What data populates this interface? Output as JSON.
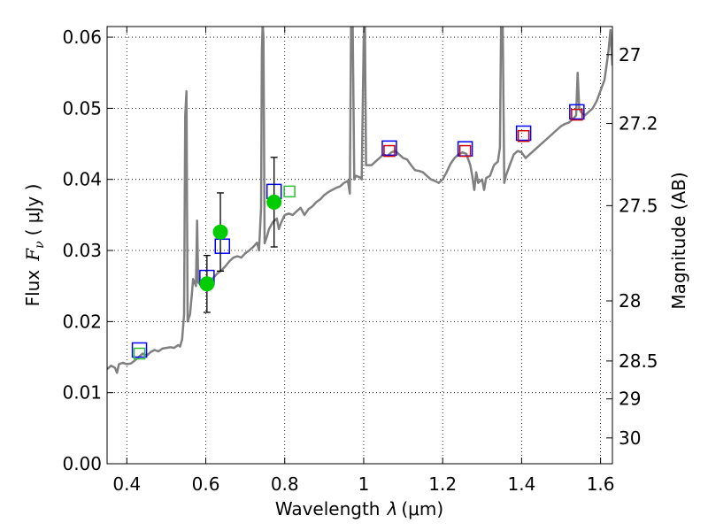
{
  "chart_data": {
    "type": "line",
    "x_axis": {
      "label_prefix": "Wavelength",
      "label_symbol": "λ",
      "label_unit": "(μm)",
      "range": [
        0.35,
        1.63
      ],
      "ticks": [
        0.4,
        0.6,
        0.8,
        1.0,
        1.2,
        1.4,
        1.6
      ],
      "tick_labels": [
        "0.4",
        "0.6",
        "0.8",
        "1",
        "1.2",
        "1.4",
        "1.6"
      ]
    },
    "y_axis": {
      "label_prefix": "Flux",
      "label_symbol": "F",
      "label_subscript": "ν",
      "label_unit": "( μJy )",
      "range": [
        0.0,
        0.0615
      ],
      "ticks": [
        0.0,
        0.01,
        0.02,
        0.03,
        0.04,
        0.05,
        0.06
      ],
      "tick_labels": [
        "0.00",
        "0.01",
        "0.02",
        "0.03",
        "0.04",
        "0.05",
        "0.06"
      ]
    },
    "y2_axis": {
      "label": "Magnitude (AB)",
      "ticks": [
        27,
        27.2,
        27.5,
        28,
        28.5,
        29,
        30
      ],
      "tick_labels": [
        "27",
        "27.2",
        "27.5",
        "28",
        "28.5",
        "29",
        "30"
      ]
    },
    "grid": true,
    "series": [
      {
        "kind": "line",
        "color": "#808080",
        "points": [
          [
            0.35,
            0.0133
          ],
          [
            0.36,
            0.0138
          ],
          [
            0.37,
            0.0135
          ],
          [
            0.375,
            0.0128
          ],
          [
            0.38,
            0.014
          ],
          [
            0.39,
            0.0142
          ],
          [
            0.4,
            0.014
          ],
          [
            0.41,
            0.0141
          ],
          [
            0.42,
            0.0145
          ],
          [
            0.43,
            0.015
          ],
          [
            0.44,
            0.0155
          ],
          [
            0.45,
            0.0152
          ],
          [
            0.46,
            0.0157
          ],
          [
            0.47,
            0.016
          ],
          [
            0.48,
            0.0158
          ],
          [
            0.49,
            0.0162
          ],
          [
            0.5,
            0.0163
          ],
          [
            0.51,
            0.0164
          ],
          [
            0.52,
            0.0163
          ],
          [
            0.53,
            0.0167
          ],
          [
            0.535,
            0.0165
          ],
          [
            0.54,
            0.0175
          ],
          [
            0.545,
            0.021
          ],
          [
            0.548,
            0.049
          ],
          [
            0.551,
            0.0524
          ],
          [
            0.554,
            0.02
          ],
          [
            0.56,
            0.021
          ],
          [
            0.565,
            0.024
          ],
          [
            0.568,
            0.026
          ],
          [
            0.575,
            0.025
          ],
          [
            0.578,
            0.0342
          ],
          [
            0.581,
            0.0255
          ],
          [
            0.59,
            0.025
          ],
          [
            0.6,
            0.0255
          ],
          [
            0.61,
            0.0257
          ],
          [
            0.62,
            0.0262
          ],
          [
            0.63,
            0.0268
          ],
          [
            0.64,
            0.0272
          ],
          [
            0.65,
            0.0278
          ],
          [
            0.66,
            0.0285
          ],
          [
            0.67,
            0.029
          ],
          [
            0.68,
            0.0292
          ],
          [
            0.69,
            0.029
          ],
          [
            0.7,
            0.0296
          ],
          [
            0.71,
            0.03
          ],
          [
            0.72,
            0.0305
          ],
          [
            0.73,
            0.0311
          ],
          [
            0.735,
            0.03
          ],
          [
            0.74,
            0.036
          ],
          [
            0.742,
            0.058
          ],
          [
            0.744,
            0.062
          ],
          [
            0.746,
            0.06
          ],
          [
            0.749,
            0.031
          ],
          [
            0.755,
            0.032
          ],
          [
            0.76,
            0.033
          ],
          [
            0.77,
            0.034
          ],
          [
            0.78,
            0.0345
          ],
          [
            0.785,
            0.033
          ],
          [
            0.79,
            0.0338
          ],
          [
            0.8,
            0.035
          ],
          [
            0.81,
            0.0352
          ],
          [
            0.82,
            0.035
          ],
          [
            0.83,
            0.0355
          ],
          [
            0.84,
            0.036
          ],
          [
            0.85,
            0.035
          ],
          [
            0.86,
            0.0358
          ],
          [
            0.87,
            0.0362
          ],
          [
            0.88,
            0.0368
          ],
          [
            0.89,
            0.0372
          ],
          [
            0.9,
            0.0378
          ],
          [
            0.91,
            0.0382
          ],
          [
            0.92,
            0.0385
          ],
          [
            0.93,
            0.0388
          ],
          [
            0.94,
            0.039
          ],
          [
            0.95,
            0.0395
          ],
          [
            0.96,
            0.0398
          ],
          [
            0.965,
            0.038
          ],
          [
            0.968,
            0.062
          ],
          [
            0.972,
            0.062
          ],
          [
            0.976,
            0.04
          ],
          [
            0.98,
            0.0405
          ],
          [
            0.99,
            0.0403
          ],
          [
            0.995,
            0.04
          ],
          [
            1.0,
            0.06
          ],
          [
            1.003,
            0.062
          ],
          [
            1.006,
            0.042
          ],
          [
            1.02,
            0.042
          ],
          [
            1.03,
            0.0425
          ],
          [
            1.04,
            0.043
          ],
          [
            1.05,
            0.0435
          ],
          [
            1.06,
            0.0433
          ],
          [
            1.07,
            0.0438
          ],
          [
            1.08,
            0.044
          ],
          [
            1.09,
            0.0435
          ],
          [
            1.1,
            0.043
          ],
          [
            1.11,
            0.0428
          ],
          [
            1.12,
            0.042
          ],
          [
            1.13,
            0.0413
          ],
          [
            1.14,
            0.0412
          ],
          [
            1.15,
            0.041
          ],
          [
            1.16,
            0.0405
          ],
          [
            1.17,
            0.04
          ],
          [
            1.18,
            0.0398
          ],
          [
            1.19,
            0.0395
          ],
          [
            1.2,
            0.04
          ],
          [
            1.21,
            0.041
          ],
          [
            1.22,
            0.0422
          ],
          [
            1.23,
            0.043
          ],
          [
            1.24,
            0.0435
          ],
          [
            1.25,
            0.0438
          ],
          [
            1.26,
            0.0436
          ],
          [
            1.27,
            0.042
          ],
          [
            1.275,
            0.0405
          ],
          [
            1.28,
            0.0385
          ],
          [
            1.285,
            0.041
          ],
          [
            1.29,
            0.0395
          ],
          [
            1.3,
            0.04
          ],
          [
            1.305,
            0.0385
          ],
          [
            1.31,
            0.0402
          ],
          [
            1.32,
            0.0405
          ],
          [
            1.33,
            0.042
          ],
          [
            1.34,
            0.0425
          ],
          [
            1.345,
            0.0445
          ],
          [
            1.348,
            0.062
          ],
          [
            1.352,
            0.062
          ],
          [
            1.356,
            0.0395
          ],
          [
            1.36,
            0.0405
          ],
          [
            1.37,
            0.042
          ],
          [
            1.38,
            0.0435
          ],
          [
            1.39,
            0.044
          ],
          [
            1.4,
            0.0438
          ],
          [
            1.41,
            0.043
          ],
          [
            1.42,
            0.0435
          ],
          [
            1.43,
            0.044
          ],
          [
            1.44,
            0.0445
          ],
          [
            1.45,
            0.045
          ],
          [
            1.46,
            0.0455
          ],
          [
            1.47,
            0.046
          ],
          [
            1.48,
            0.0465
          ],
          [
            1.49,
            0.047
          ],
          [
            1.5,
            0.0475
          ],
          [
            1.51,
            0.0478
          ],
          [
            1.52,
            0.048
          ],
          [
            1.53,
            0.0485
          ],
          [
            1.538,
            0.049
          ],
          [
            1.542,
            0.055
          ],
          [
            1.546,
            0.05
          ],
          [
            1.55,
            0.0495
          ],
          [
            1.56,
            0.049
          ],
          [
            1.57,
            0.0495
          ],
          [
            1.58,
            0.05
          ],
          [
            1.59,
            0.051
          ],
          [
            1.6,
            0.0525
          ],
          [
            1.61,
            0.054
          ],
          [
            1.615,
            0.056
          ],
          [
            1.62,
            0.058
          ],
          [
            1.625,
            0.061
          ],
          [
            1.63,
            0.056
          ]
        ]
      },
      {
        "kind": "square_marker",
        "edge_color": "#0000ff",
        "size": "large",
        "points": [
          [
            0.432,
            0.016
          ],
          [
            0.603,
            0.0262
          ],
          [
            0.642,
            0.0306
          ],
          [
            0.773,
            0.0383
          ],
          [
            1.065,
            0.0444
          ],
          [
            1.257,
            0.0443
          ],
          [
            1.405,
            0.0465
          ],
          [
            1.54,
            0.0495
          ]
        ]
      },
      {
        "kind": "square_marker",
        "edge_color": "#33bb33",
        "size": "small",
        "points": [
          [
            0.432,
            0.0155
          ],
          [
            0.812,
            0.0383
          ]
        ]
      },
      {
        "kind": "square_marker",
        "edge_color": "#cc0000",
        "size": "small",
        "points": [
          [
            1.065,
            0.044
          ],
          [
            1.257,
            0.044
          ],
          [
            1.405,
            0.0461
          ],
          [
            1.54,
            0.0491
          ]
        ]
      },
      {
        "kind": "errorbar_circle",
        "color": "#00cc00",
        "points": [
          {
            "x": 0.603,
            "y": 0.0253,
            "yerr_low": 0.004,
            "yerr_high": 0.004
          },
          {
            "x": 0.637,
            "y": 0.0326,
            "yerr_low": 0.0055,
            "yerr_high": 0.0055
          },
          {
            "x": 0.773,
            "y": 0.0368,
            "yerr_low": 0.0063,
            "yerr_high": 0.0063
          }
        ]
      }
    ]
  }
}
